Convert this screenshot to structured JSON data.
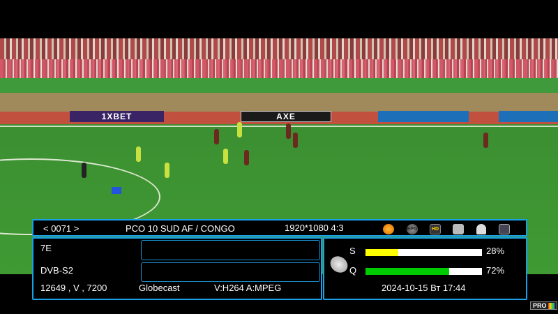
{
  "video": {
    "ads": [
      "1XBET",
      "AXE"
    ]
  },
  "infobar": {
    "channel_number": "< 0071 >",
    "channel_name": "PCO 10 SUD AF / CONGO",
    "resolution": "1920*1080  4:3",
    "icons": [
      "coin-icon",
      "epg-icon",
      "hd-icon",
      "scramble-icon",
      "lock-icon",
      "subtitle-icon"
    ],
    "icon_labels": {
      "epg": "EPG",
      "hd": "HD"
    }
  },
  "details": {
    "satellite": "7E",
    "system": "DVB-S2",
    "transponder": "12649 , V , 7200",
    "provider": "Globecast",
    "codec": "V:H264 A:MPEG"
  },
  "signal": {
    "strength_label": "S",
    "strength": 28,
    "strength_text": "28%",
    "strength_color": "#ffff00",
    "quality_label": "Q",
    "quality": 72,
    "quality_text": "72%",
    "quality_color": "#00cc00",
    "datetime": "2024-10-15 Вт 17:44"
  },
  "logo": {
    "text": "PRO"
  },
  "colors": {
    "border": "#1aa0e6"
  }
}
